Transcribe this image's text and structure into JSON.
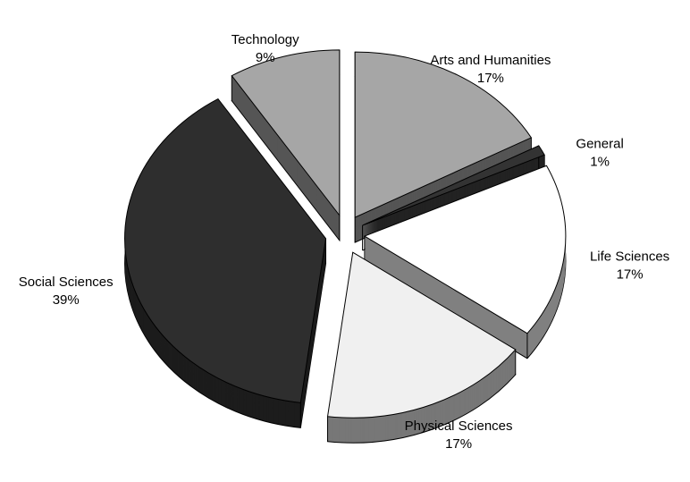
{
  "chart_data": {
    "type": "pie3d",
    "categories": [
      "Arts and Humanities",
      "General",
      "Life Sciences",
      "Physical Sciences",
      "Social Sciences",
      "Technology"
    ],
    "values": [
      17,
      1,
      17,
      17,
      39,
      9
    ],
    "value_labels": [
      "17%",
      "1%",
      "17%",
      "17%",
      "39%",
      "9%"
    ],
    "colors": [
      "#a6a6a6",
      "#333333",
      "#ffffff",
      "#f0f0f0",
      "#2e2e2e",
      "#a6a6a6"
    ],
    "side_colors": [
      "#555555",
      "#222222",
      "#808080",
      "#777777",
      "#1c1c1c",
      "#555555"
    ]
  }
}
